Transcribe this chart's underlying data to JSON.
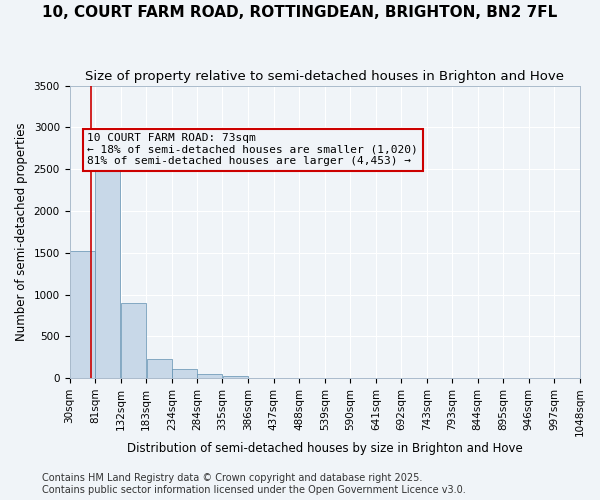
{
  "title_line1": "10, COURT FARM ROAD, ROTTINGDEAN, BRIGHTON, BN2 7FL",
  "title_line2": "Size of property relative to semi-detached houses in Brighton and Hove",
  "xlabel": "Distribution of semi-detached houses by size in Brighton and Hove",
  "ylabel": "Number of semi-detached properties",
  "bar_color": "#c8d8e8",
  "bar_edgecolor": "#6090b0",
  "annotation_line_color": "#cc0000",
  "annotation_box_edgecolor": "#cc0000",
  "annotation_text": "10 COURT FARM ROAD: 73sqm\n← 18% of semi-detached houses are smaller (1,020)\n81% of semi-detached houses are larger (4,453) →",
  "property_sqm": 73,
  "bin_labels": [
    "30sqm",
    "81sqm",
    "132sqm",
    "183sqm",
    "234sqm",
    "284sqm",
    "335sqm",
    "386sqm",
    "437sqm",
    "488sqm",
    "539sqm",
    "590sqm",
    "641sqm",
    "692sqm",
    "743sqm",
    "793sqm",
    "844sqm",
    "895sqm",
    "946sqm",
    "997sqm",
    "1048sqm"
  ],
  "bin_edges": [
    30,
    81,
    132,
    183,
    234,
    284,
    335,
    386,
    437,
    488,
    539,
    590,
    641,
    692,
    743,
    793,
    844,
    895,
    946,
    997,
    1048
  ],
  "bar_heights": [
    1520,
    2780,
    900,
    230,
    110,
    50,
    25,
    5,
    2,
    1,
    0,
    0,
    0,
    0,
    0,
    0,
    0,
    0,
    0,
    0
  ],
  "ylim": [
    0,
    3500
  ],
  "yticks": [
    0,
    500,
    1000,
    1500,
    2000,
    2500,
    3000,
    3500
  ],
  "footer_text": "Contains HM Land Registry data © Crown copyright and database right 2025.\nContains public sector information licensed under the Open Government Licence v3.0.",
  "background_color": "#f0f4f8",
  "grid_color": "#ffffff",
  "title_fontsize": 11,
  "subtitle_fontsize": 9.5,
  "axis_label_fontsize": 8.5,
  "tick_fontsize": 7.5,
  "annotation_fontsize": 8,
  "footer_fontsize": 7
}
